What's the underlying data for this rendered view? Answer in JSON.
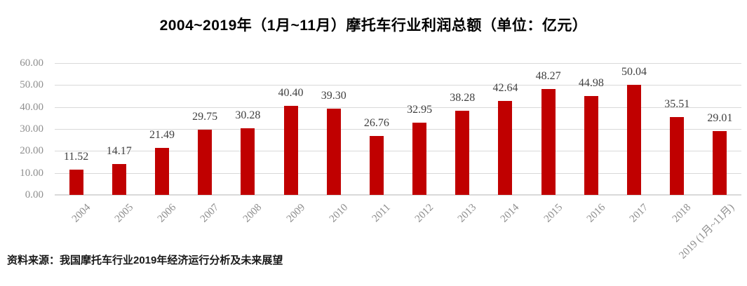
{
  "source_note": "资料来源：我国摩托车行业2019年经济运行分析及未来展望",
  "chart_data": {
    "type": "bar",
    "title": "2004~2019年（1月~11月）摩托车行业利润总额（单位：亿元）",
    "categories": [
      "2004",
      "2005",
      "2006",
      "2007",
      "2008",
      "2009",
      "2010",
      "2011",
      "2012",
      "2013",
      "2014",
      "2015",
      "2016",
      "2017",
      "2018",
      "2019 (1月~11月)"
    ],
    "values": [
      11.52,
      14.17,
      21.49,
      29.75,
      30.28,
      40.4,
      39.3,
      26.76,
      32.95,
      38.28,
      42.64,
      48.27,
      44.98,
      50.04,
      35.51,
      29.01
    ],
    "xlabel": "",
    "ylabel": "",
    "ylim": [
      0,
      60
    ],
    "ytick_step": 10,
    "ytick_labels": [
      "0.00",
      "10.00",
      "20.00",
      "30.00",
      "40.00",
      "50.00",
      "60.00"
    ],
    "value_label_decimals": 2,
    "grid": true,
    "legend_position": "none",
    "colors": {
      "bar": "#c00000",
      "gridline": "#d9d9d9",
      "axis_text": "#8e8e8e",
      "value_label_text": "#3f3f3f",
      "title_text": "#000000"
    }
  }
}
